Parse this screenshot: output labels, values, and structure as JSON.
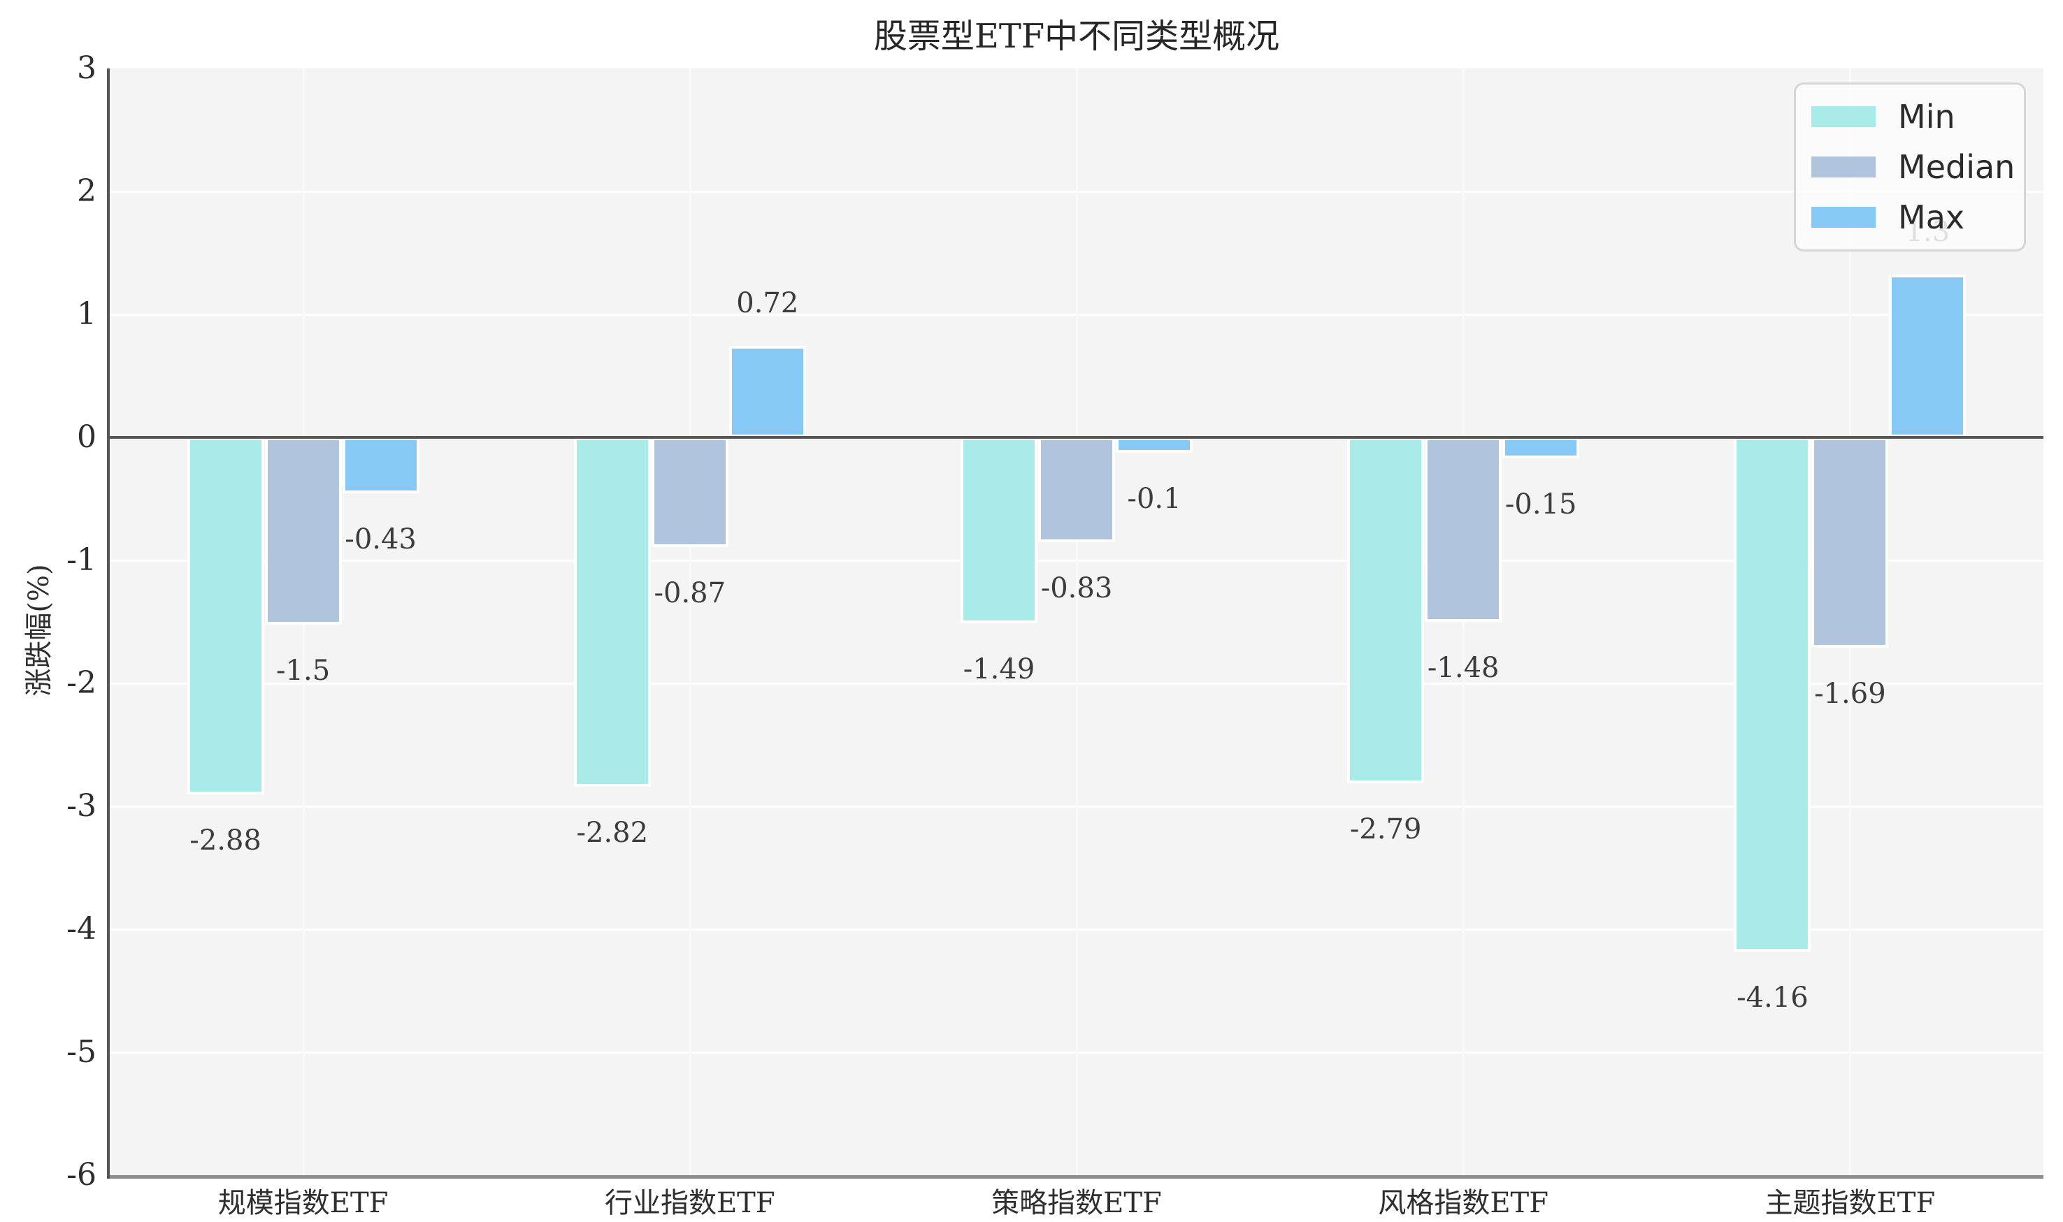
{
  "chart_data": {
    "type": "bar",
    "title": "股票型ETF中不同类型概况",
    "ylabel": "涨跌幅(%)",
    "xlabel": "",
    "categories": [
      "规模指数ETF",
      "行业指数ETF",
      "策略指数ETF",
      "风格指数ETF",
      "主题指数ETF"
    ],
    "series": [
      {
        "name": "Min",
        "color": "#a9ebe8",
        "values": [
          -2.88,
          -2.82,
          -1.49,
          -2.79,
          -4.16
        ]
      },
      {
        "name": "Median",
        "color": "#b0c4de",
        "values": [
          -1.5,
          -0.87,
          -0.83,
          -1.48,
          -1.69
        ]
      },
      {
        "name": "Max",
        "color": "#85c9f4",
        "values": [
          -0.43,
          0.72,
          -0.1,
          -0.15,
          1.3
        ]
      }
    ],
    "ylim": [
      -6,
      3
    ],
    "yticks": [
      "3",
      "2",
      "1",
      "0",
      "-1",
      "-2",
      "-3",
      "-4",
      "-5",
      "-6"
    ],
    "grid": true,
    "legend_position": "upper right",
    "colors": {
      "plot_background": "#f4f4f5",
      "figure_background": "#ffffff",
      "gridline": "#ffffff",
      "zero_line": "#565656",
      "left_spine": "#565656",
      "bottom_spine": "#8c8c8c",
      "text": "#2e2e2e",
      "bar_label_text": "#3c3c3c"
    }
  }
}
